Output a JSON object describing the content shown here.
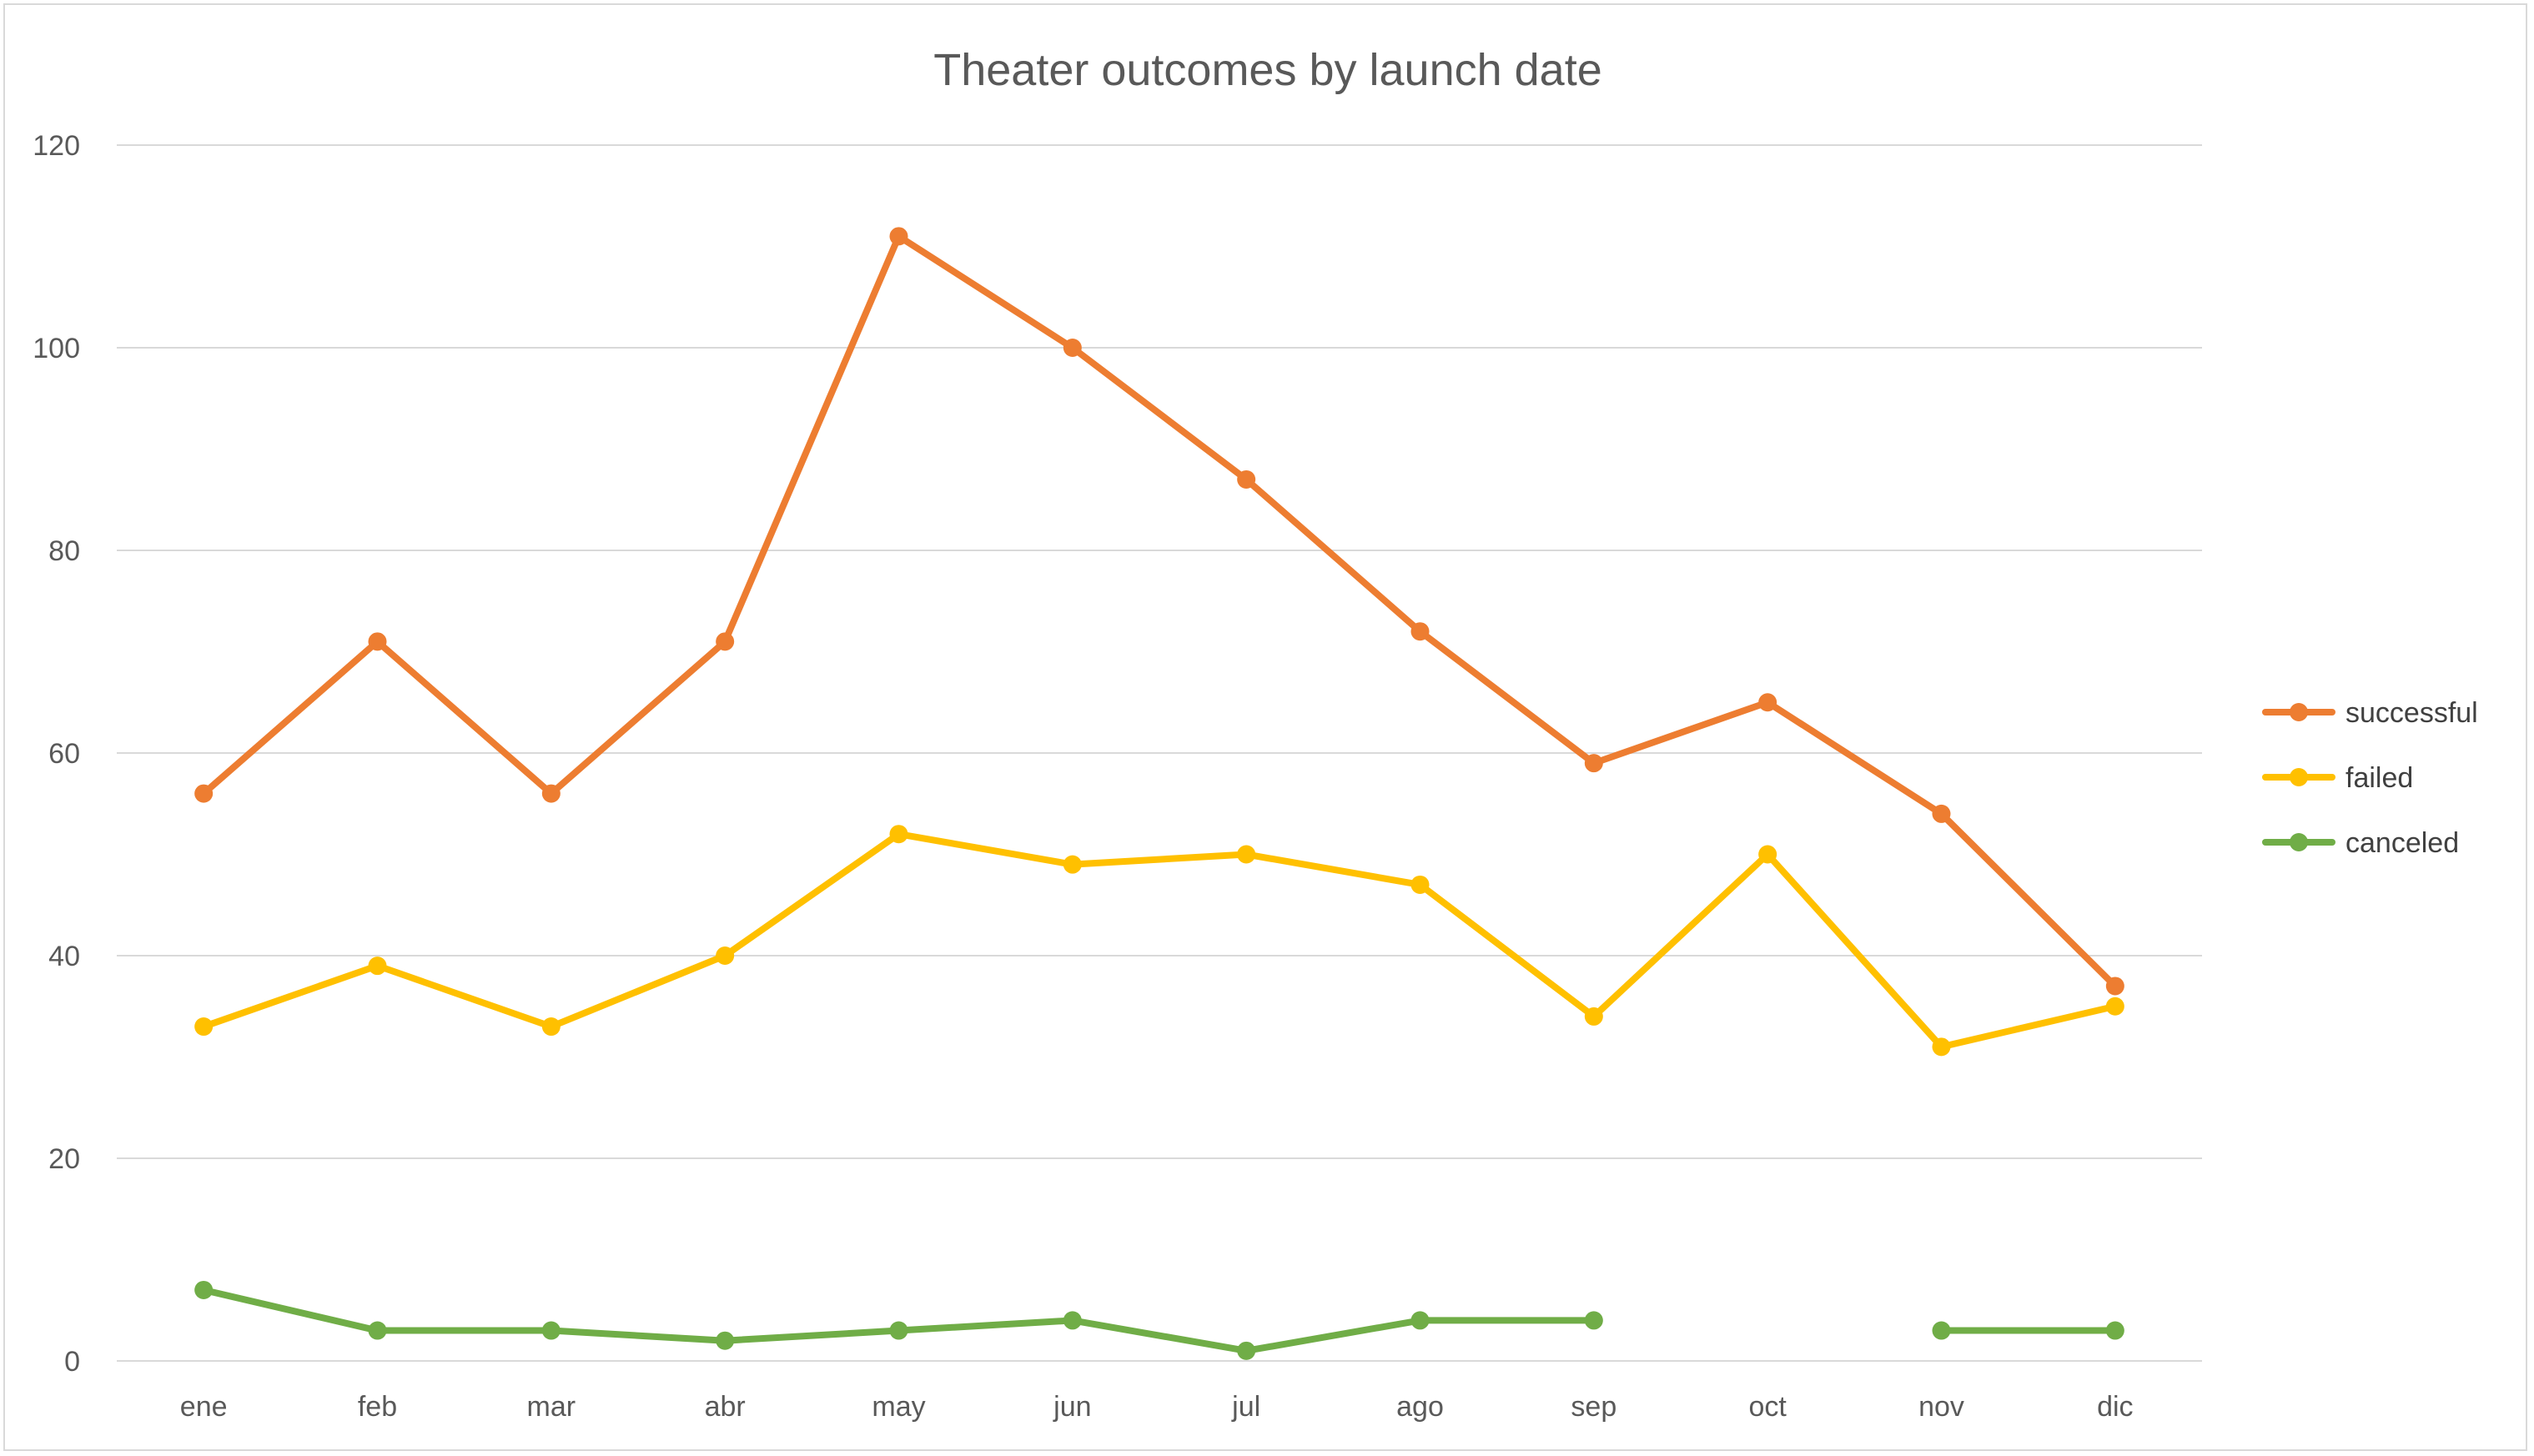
{
  "chart_data": {
    "type": "line",
    "title": "Theater outcomes by launch date",
    "xlabel": "",
    "ylabel": "",
    "categories": [
      "ene",
      "feb",
      "mar",
      "abr",
      "may",
      "jun",
      "jul",
      "ago",
      "sep",
      "oct",
      "nov",
      "dic"
    ],
    "ylim": [
      0,
      120
    ],
    "yticks": [
      0,
      20,
      40,
      60,
      80,
      100,
      120
    ],
    "grid": true,
    "legend_position": "right",
    "series": [
      {
        "name": "successful",
        "color": "#ED7D31",
        "values": [
          56,
          71,
          56,
          71,
          111,
          100,
          87,
          72,
          59,
          65,
          54,
          37
        ]
      },
      {
        "name": "failed",
        "color": "#FFC000",
        "values": [
          33,
          39,
          33,
          40,
          52,
          49,
          50,
          47,
          34,
          50,
          31,
          35
        ]
      },
      {
        "name": "canceled",
        "color": "#70AD47",
        "values": [
          7,
          3,
          3,
          2,
          3,
          4,
          1,
          4,
          4,
          null,
          3,
          3
        ]
      }
    ]
  }
}
